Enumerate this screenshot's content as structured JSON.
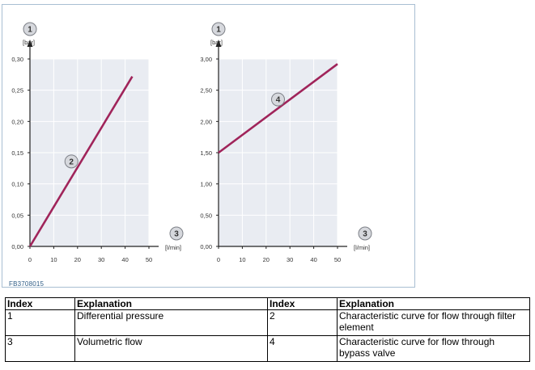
{
  "figure_code": "FB3708015",
  "chart_data": [
    {
      "type": "line",
      "y_unit": "[bar]",
      "x_unit": "[l/min]",
      "y_axis_marker": "1",
      "x_axis_marker": "3",
      "xlim": [
        0,
        50
      ],
      "ylim": [
        0,
        0.3
      ],
      "x_ticks": [
        "0",
        "10",
        "20",
        "30",
        "40",
        "50"
      ],
      "y_ticks": [
        "0,00",
        "0,05",
        "0,10",
        "0,15",
        "0,20",
        "0,25",
        "0,30"
      ],
      "grid": true,
      "series": [
        {
          "marker": "2",
          "x": [
            0,
            43
          ],
          "y": [
            0,
            0.272
          ],
          "color": "#a0245a"
        }
      ]
    },
    {
      "type": "line",
      "y_unit": "[bar]",
      "x_unit": "[l/min]",
      "y_axis_marker": "1",
      "x_axis_marker": "3",
      "xlim": [
        0,
        50
      ],
      "ylim": [
        0,
        3.0
      ],
      "x_ticks": [
        "0",
        "10",
        "20",
        "30",
        "40",
        "50"
      ],
      "y_ticks": [
        "0,00",
        "0,50",
        "1,00",
        "1,50",
        "2,00",
        "2,50",
        "3,00"
      ],
      "grid": true,
      "series": [
        {
          "marker": "4",
          "x": [
            0,
            50
          ],
          "y": [
            1.5,
            2.92
          ],
          "color": "#a0245a"
        }
      ]
    }
  ],
  "legend_table": {
    "headers": [
      "Index",
      "Explanation",
      "Index",
      "Explanation"
    ],
    "rows": [
      [
        "1",
        "Differential pressure",
        "2",
        "Characteristic curve for flow through filter element"
      ],
      [
        "3",
        "Volumetric flow",
        "4",
        "Characteristic curve for flow through bypass valve"
      ]
    ]
  }
}
